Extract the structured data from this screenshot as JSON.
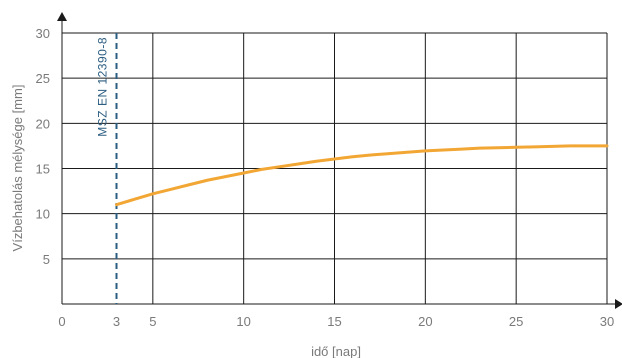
{
  "chart_data": {
    "type": "line",
    "title": "",
    "xlabel": "idő [nap]",
    "ylabel": "Vízbehatolás mélysége [mm]",
    "xlim": [
      0,
      30
    ],
    "ylim": [
      0,
      30
    ],
    "x_ticks": [
      0,
      3,
      5,
      10,
      15,
      20,
      25,
      30
    ],
    "y_ticks": [
      5,
      10,
      15,
      20,
      25,
      30
    ],
    "grid": true,
    "series": [
      {
        "color": "#f2a634",
        "x": [
          3,
          4,
          5,
          6,
          7,
          8,
          9,
          10,
          11,
          12,
          13,
          14,
          15,
          16,
          17,
          18,
          19,
          20,
          21,
          22,
          23,
          24,
          25,
          26,
          27,
          28,
          29,
          30
        ],
        "y": [
          11.0,
          11.6,
          12.2,
          12.7,
          13.2,
          13.7,
          14.1,
          14.5,
          14.9,
          15.2,
          15.5,
          15.8,
          16.05,
          16.3,
          16.5,
          16.65,
          16.8,
          16.95,
          17.05,
          17.15,
          17.25,
          17.3,
          17.35,
          17.4,
          17.45,
          17.5,
          17.5,
          17.5
        ]
      }
    ],
    "reference_line": {
      "x": 3,
      "label": "MSZ EN 12390-8",
      "color": "#2b5d82"
    },
    "colors": {
      "grid": "#1a1a1a",
      "axis": "#1a1a1a",
      "text": "#7a7a7a"
    }
  }
}
